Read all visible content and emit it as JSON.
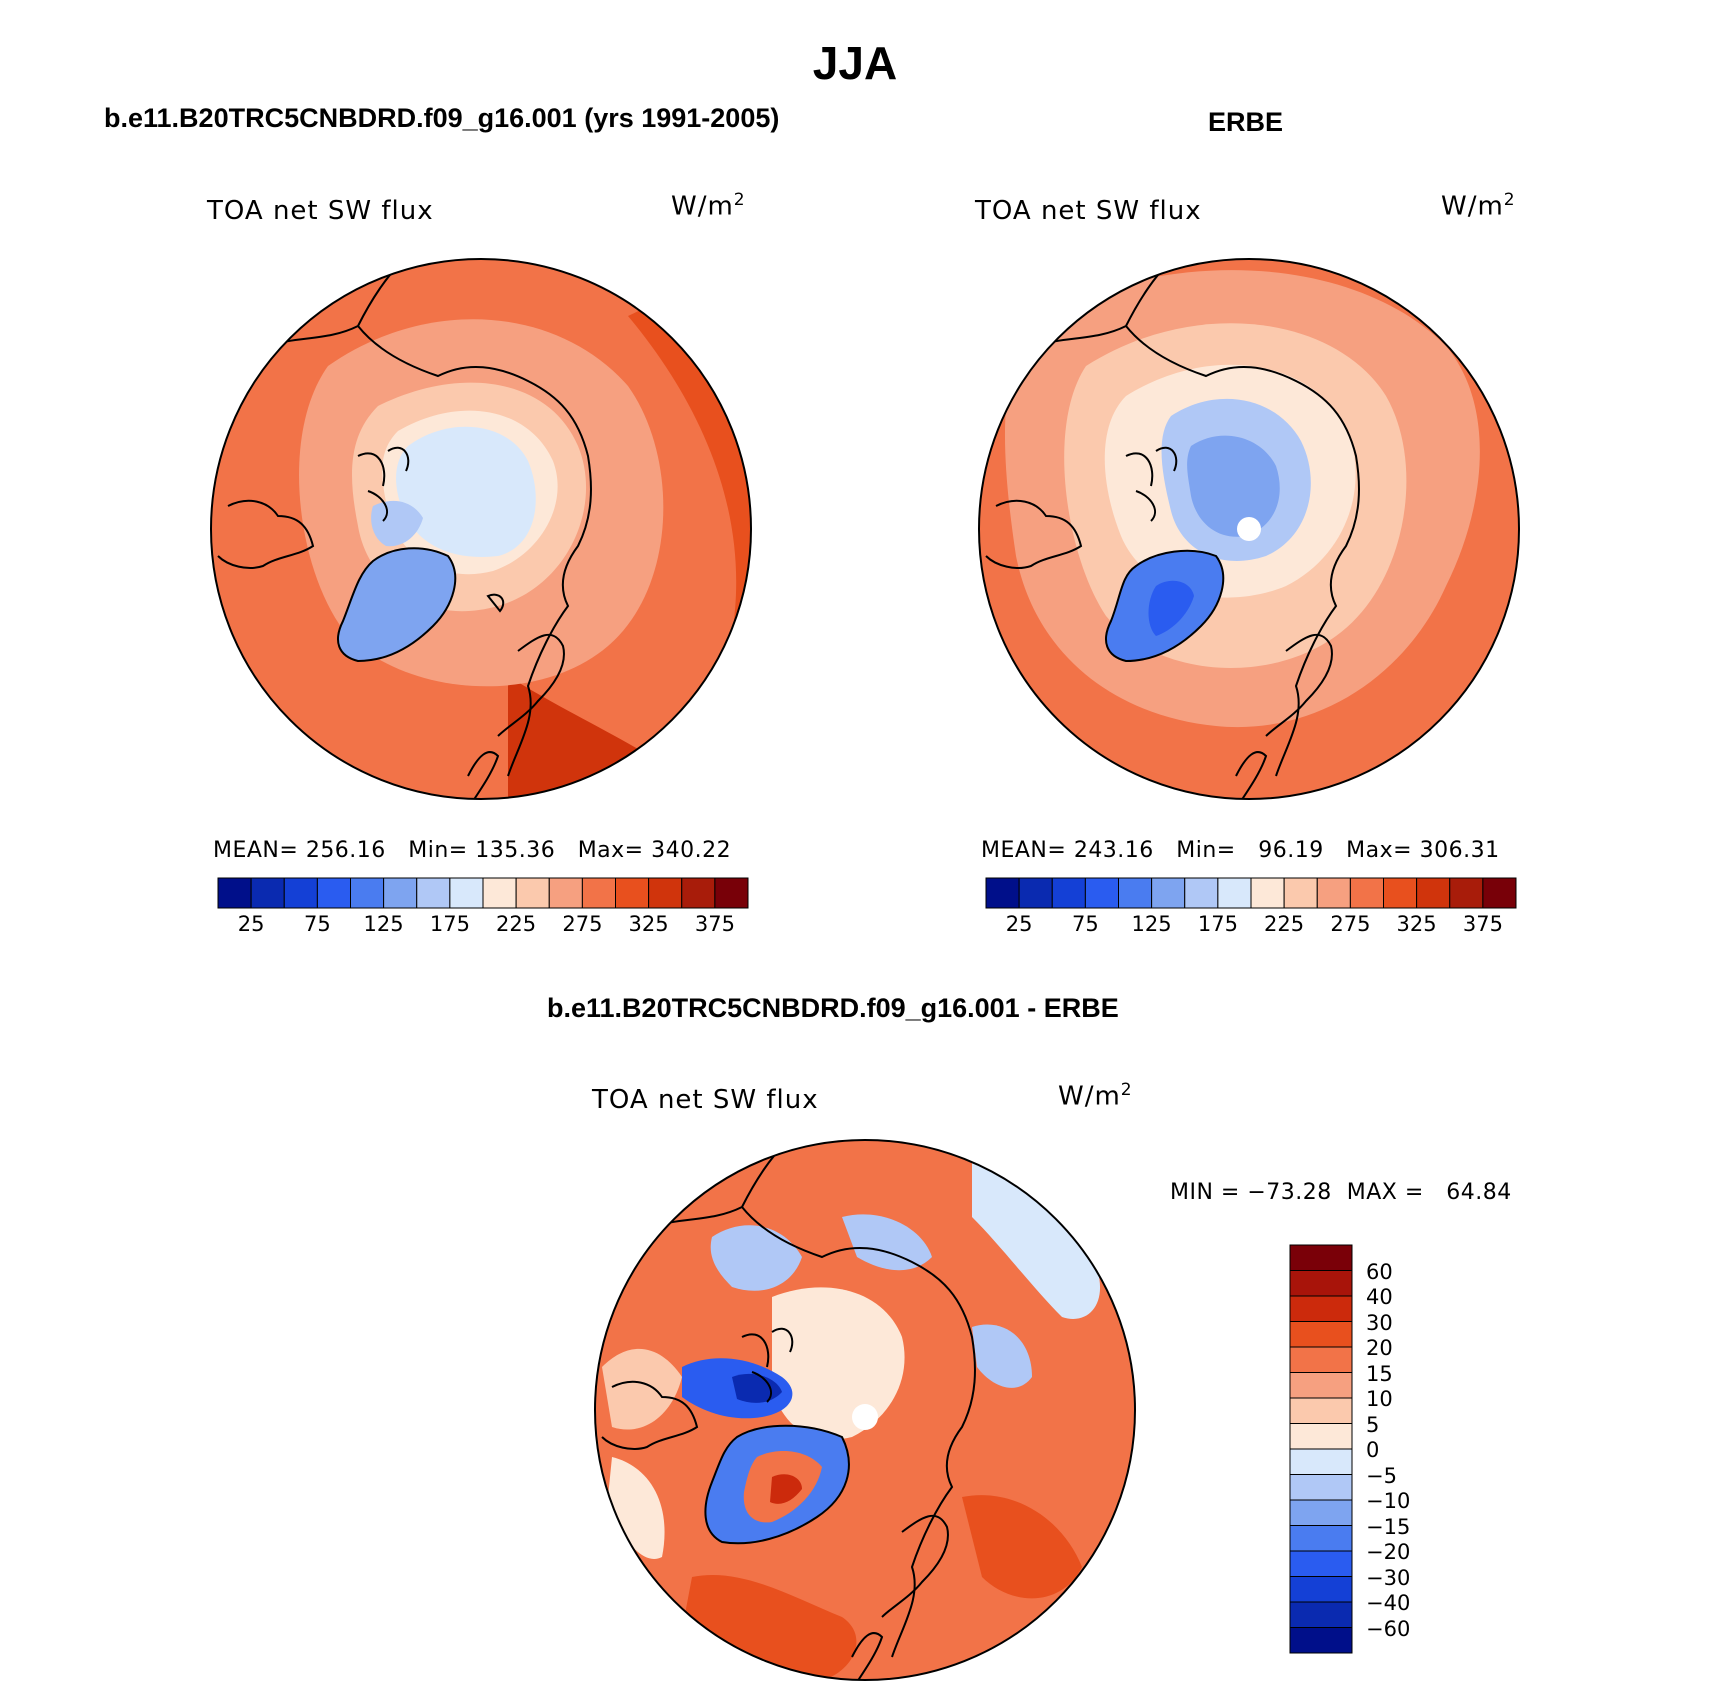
{
  "title": "JJA",
  "panels": [
    {
      "id": "model",
      "title": "b.e11.B20TRC5CNBDRD.f09_g16.001 (yrs 1991-2005)",
      "variable": "TOA net SW flux",
      "units": "W/m",
      "units_sup": "2",
      "stats": "MEAN= 256.16   Min= 135.36   Max= 340.22",
      "mean": 256.16,
      "min": 135.36,
      "max": 340.22
    },
    {
      "id": "obs",
      "title": "ERBE",
      "variable": "TOA net SW flux",
      "units": "W/m",
      "units_sup": "2",
      "stats": "MEAN= 243.16   Min=   96.19   Max= 306.31",
      "mean": 243.16,
      "min": 96.19,
      "max": 306.31
    },
    {
      "id": "diff",
      "title": "b.e11.B20TRC5CNBDRD.f09_g16.001 - ERBE",
      "variable": "TOA net SW flux",
      "units": "W/m",
      "units_sup": "2",
      "stats": "MIN = −73.28  MAX =   64.84",
      "min": -73.28,
      "max": 64.84
    }
  ],
  "colorbar_main": {
    "colors": [
      "#000f8a",
      "#0a2ab0",
      "#1440d6",
      "#2a5cf0",
      "#4a7cf0",
      "#7ea4f0",
      "#b0c8f6",
      "#d8e8fb",
      "#fde8d8",
      "#fbc9ad",
      "#f6a080",
      "#f27348",
      "#e8501e",
      "#d0340c",
      "#a81c0a",
      "#780008"
    ],
    "tick_labels": [
      "25",
      "75",
      "125",
      "175",
      "225",
      "275",
      "325",
      "375"
    ]
  },
  "colorbar_diff": {
    "colors_top_to_bottom": [
      "#7a0008",
      "#a8140a",
      "#cc2a0c",
      "#e8501e",
      "#f27348",
      "#f6a080",
      "#fbc9ad",
      "#fde8d8",
      "#d8e8fb",
      "#b0c8f6",
      "#7ea4f0",
      "#4a7cf0",
      "#2a5cf0",
      "#1440d6",
      "#0a2ab0",
      "#000f8a"
    ],
    "tick_labels": [
      "60",
      "40",
      "30",
      "20",
      "15",
      "10",
      "5",
      "0",
      "−5",
      "−10",
      "−15",
      "−20",
      "−30",
      "−40",
      "−60"
    ]
  }
}
